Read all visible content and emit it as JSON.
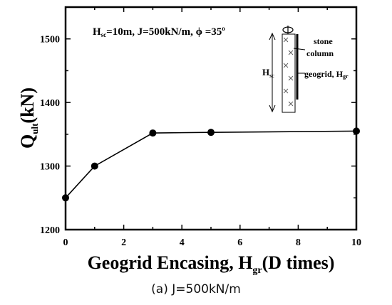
{
  "chart_data": {
    "type": "line",
    "title": "",
    "xlabel": {
      "main": "Geogrid Encasing, H",
      "sub": "gr",
      "tail": "(D times)"
    },
    "ylabel": {
      "main": "Q",
      "sub": "ult",
      "tail": "(kN)"
    },
    "xlim": [
      0,
      10
    ],
    "ylim": [
      1200,
      1550
    ],
    "xticks": [
      0,
      2,
      4,
      6,
      8,
      10
    ],
    "yticks": [
      1200,
      1300,
      1400,
      1500
    ],
    "series": [
      {
        "x": [
          0,
          1,
          3,
          5,
          10
        ],
        "y": [
          1250,
          1300,
          1352,
          1353,
          1355
        ]
      }
    ],
    "annotation": {
      "params": {
        "h": "H",
        "h_sub": "sc",
        "rest": "=10m, J=500kN/m, ",
        "phi": "ϕ",
        "phi_val": " =35",
        "deg": "o"
      },
      "inset": {
        "stone_label_1": "stone",
        "stone_label_2": "column",
        "geogrid_label": "geogrid, H",
        "geogrid_sub": "gr",
        "height_label": "H",
        "height_sub": "sc"
      }
    },
    "grid": false,
    "legend": "none"
  },
  "caption": "(a) J=500kN/m"
}
